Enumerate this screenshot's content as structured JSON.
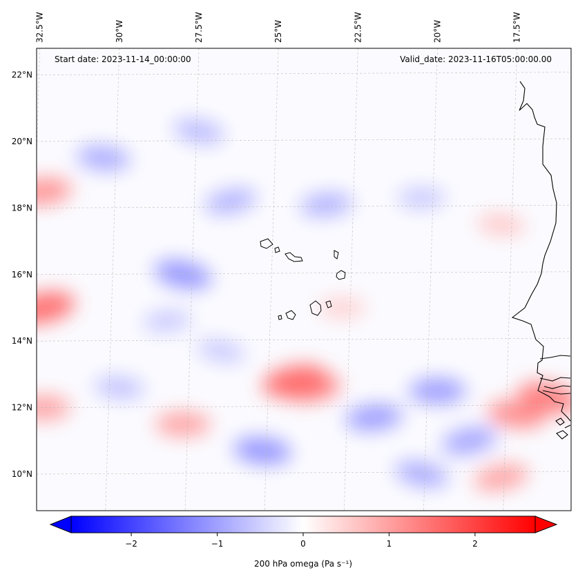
{
  "chart_data": {
    "type": "heatmap",
    "title": "",
    "start_date_label": "Start date: 2023-11-14_00:00:00",
    "valid_date_label": "Valid_date: 2023-11-16T05:00:00.00",
    "x_axis": {
      "label": "",
      "ticks": [
        {
          "value": -32.5,
          "label": "32.5°W"
        },
        {
          "value": -30.0,
          "label": "30°W"
        },
        {
          "value": -27.5,
          "label": "27.5°W"
        },
        {
          "value": -25.0,
          "label": "25°W"
        },
        {
          "value": -22.5,
          "label": "22.5°W"
        },
        {
          "value": -20.0,
          "label": "20°W"
        },
        {
          "value": -17.5,
          "label": "17.5°W"
        }
      ],
      "range": [
        -32.6,
        -15.8
      ]
    },
    "y_axis": {
      "label": "",
      "ticks": [
        {
          "value": 10,
          "label": "10°N"
        },
        {
          "value": 12,
          "label": "12°N"
        },
        {
          "value": 14,
          "label": "14°N"
        },
        {
          "value": 16,
          "label": "16°N"
        },
        {
          "value": 18,
          "label": "18°N"
        },
        {
          "value": 20,
          "label": "20°N"
        },
        {
          "value": 22,
          "label": "22°N"
        }
      ],
      "range": [
        8.9,
        22.8
      ]
    },
    "grid": true,
    "colorbar": {
      "label": "200 hPa omega (Pa s⁻¹)",
      "vmin": -2.7,
      "vmax": 2.7,
      "ticks": [
        {
          "value": -2,
          "label": "−2"
        },
        {
          "value": -1,
          "label": "−1"
        },
        {
          "value": 0,
          "label": "0"
        },
        {
          "value": 1,
          "label": "1"
        },
        {
          "value": 2,
          "label": "2"
        }
      ],
      "colormap": "bwr",
      "extend": "both",
      "low_color": "#0000ff",
      "mid_color": "#ffffff",
      "high_color": "#ff0000"
    },
    "field": {
      "variable": "200 hPa omega",
      "units": "Pa s⁻¹",
      "features": [
        {
          "lon": -32.4,
          "lat": 15.0,
          "value": 1.9
        },
        {
          "lon": -32.4,
          "lat": 18.5,
          "value": 1.4
        },
        {
          "lon": -32.4,
          "lat": 12.0,
          "value": 1.2
        },
        {
          "lon": -30.5,
          "lat": 19.5,
          "value": -1.1
        },
        {
          "lon": -27.5,
          "lat": 20.3,
          "value": -0.9
        },
        {
          "lon": -26.5,
          "lat": 18.2,
          "value": -1.0
        },
        {
          "lon": -23.5,
          "lat": 18.1,
          "value": -1.0
        },
        {
          "lon": -20.5,
          "lat": 18.3,
          "value": -0.7
        },
        {
          "lon": -18.0,
          "lat": 17.5,
          "value": 0.7
        },
        {
          "lon": -28.0,
          "lat": 16.0,
          "value": -1.4
        },
        {
          "lon": -24.5,
          "lat": 12.8,
          "value": 1.9
        },
        {
          "lon": -24.0,
          "lat": 12.6,
          "value": 1.6
        },
        {
          "lon": -20.0,
          "lat": 12.5,
          "value": -1.3
        },
        {
          "lon": -17.5,
          "lat": 11.8,
          "value": 1.5
        },
        {
          "lon": -16.5,
          "lat": 12.3,
          "value": 1.7
        },
        {
          "lon": -19.0,
          "lat": 11.0,
          "value": -1.2
        },
        {
          "lon": -22.0,
          "lat": 11.7,
          "value": -1.3
        },
        {
          "lon": -28.0,
          "lat": 11.5,
          "value": 1.2
        },
        {
          "lon": -25.5,
          "lat": 10.7,
          "value": -1.4
        },
        {
          "lon": -20.5,
          "lat": 10.0,
          "value": -1.1
        },
        {
          "lon": -18.0,
          "lat": 9.9,
          "value": 1.2
        },
        {
          "lon": -28.5,
          "lat": 14.6,
          "value": -0.7
        },
        {
          "lon": -23.0,
          "lat": 15.0,
          "value": 0.6
        },
        {
          "lon": -30.0,
          "lat": 12.6,
          "value": -0.8
        },
        {
          "lon": -26.8,
          "lat": 13.7,
          "value": -0.7
        }
      ]
    }
  }
}
